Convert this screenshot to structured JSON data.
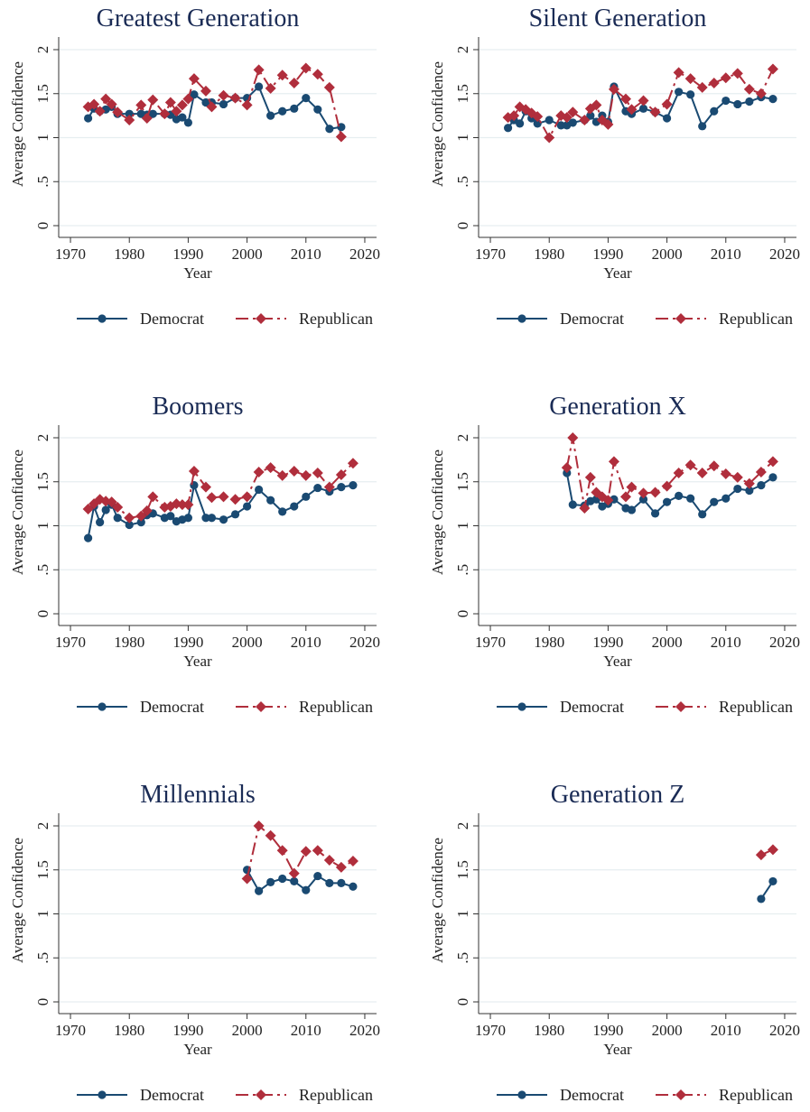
{
  "colors": {
    "democrat": "#1a4a72",
    "republican": "#b02e3c",
    "title": "#1a2b55",
    "grid": "#e6eef0"
  },
  "legend": {
    "democrat": "Democrat",
    "republican": "Republican"
  },
  "chart_data": [
    {
      "type": "line",
      "title": "Greatest Generation",
      "xlabel": "Year",
      "ylabel": "Average Confidence",
      "xlim": [
        1968,
        2022
      ],
      "ylim": [
        0,
        2
      ],
      "xticks": [
        "1970",
        "1980",
        "1990",
        "2000",
        "2010",
        "2020"
      ],
      "yticks": [
        "0",
        ".5",
        "1",
        "1.5",
        "2"
      ],
      "series": [
        {
          "name": "Democrat",
          "x": [
            1973,
            1974,
            1975,
            1976,
            1977,
            1978,
            1980,
            1982,
            1983,
            1984,
            1986,
            1987,
            1988,
            1989,
            1990,
            1991,
            1993,
            1994,
            1996,
            1998,
            2000,
            2002,
            2004,
            2006,
            2008,
            2010,
            2012,
            2014,
            2016
          ],
          "y": [
            1.22,
            1.33,
            1.3,
            1.32,
            1.35,
            1.27,
            1.27,
            1.27,
            1.26,
            1.27,
            1.27,
            1.26,
            1.21,
            1.23,
            1.17,
            1.49,
            1.4,
            1.4,
            1.38,
            1.45,
            1.45,
            1.58,
            1.25,
            1.3,
            1.33,
            1.45,
            1.32,
            1.1,
            1.12
          ]
        },
        {
          "name": "Republican",
          "x": [
            1973,
            1974,
            1975,
            1976,
            1977,
            1978,
            1980,
            1982,
            1983,
            1984,
            1986,
            1987,
            1988,
            1989,
            1990,
            1991,
            1993,
            1994,
            1996,
            1998,
            2000,
            2002,
            2004,
            2006,
            2008,
            2010,
            2012,
            2014,
            2016
          ],
          "y": [
            1.35,
            1.38,
            1.3,
            1.44,
            1.38,
            1.29,
            1.2,
            1.37,
            1.22,
            1.43,
            1.27,
            1.4,
            1.3,
            1.37,
            1.44,
            1.67,
            1.53,
            1.35,
            1.48,
            1.45,
            1.37,
            1.77,
            1.56,
            1.71,
            1.62,
            1.79,
            1.72,
            1.57,
            1.01
          ]
        }
      ]
    },
    {
      "type": "line",
      "title": "Silent Generation",
      "xlabel": "Year",
      "ylabel": "Average Confidence",
      "xlim": [
        1968,
        2022
      ],
      "ylim": [
        0,
        2
      ],
      "xticks": [
        "1970",
        "1980",
        "1990",
        "2000",
        "2010",
        "2020"
      ],
      "yticks": [
        "0",
        ".5",
        "1",
        "1.5",
        "2"
      ],
      "series": [
        {
          "name": "Democrat",
          "x": [
            1973,
            1974,
            1975,
            1976,
            1977,
            1978,
            1980,
            1982,
            1983,
            1984,
            1986,
            1987,
            1988,
            1989,
            1990,
            1991,
            1993,
            1994,
            1996,
            1998,
            2000,
            2002,
            2004,
            2006,
            2008,
            2010,
            2012,
            2014,
            2016,
            2018
          ],
          "y": [
            1.11,
            1.2,
            1.16,
            1.3,
            1.22,
            1.16,
            1.2,
            1.14,
            1.14,
            1.17,
            1.2,
            1.25,
            1.18,
            1.25,
            1.18,
            1.58,
            1.3,
            1.27,
            1.33,
            1.29,
            1.22,
            1.52,
            1.49,
            1.13,
            1.3,
            1.42,
            1.38,
            1.41,
            1.46,
            1.44
          ]
        },
        {
          "name": "Republican",
          "x": [
            1973,
            1974,
            1975,
            1976,
            1977,
            1978,
            1980,
            1982,
            1983,
            1984,
            1986,
            1987,
            1988,
            1989,
            1990,
            1991,
            1993,
            1994,
            1996,
            1998,
            2000,
            2002,
            2004,
            2006,
            2008,
            2010,
            2012,
            2014,
            2016,
            2018
          ],
          "y": [
            1.23,
            1.25,
            1.35,
            1.32,
            1.28,
            1.24,
            1.0,
            1.25,
            1.23,
            1.29,
            1.2,
            1.33,
            1.37,
            1.2,
            1.15,
            1.55,
            1.44,
            1.32,
            1.42,
            1.29,
            1.38,
            1.74,
            1.67,
            1.57,
            1.62,
            1.68,
            1.73,
            1.55,
            1.5,
            1.78
          ]
        }
      ]
    },
    {
      "type": "line",
      "title": "Boomers",
      "xlabel": "Year",
      "ylabel": "Average Confidence",
      "xlim": [
        1968,
        2022
      ],
      "ylim": [
        0,
        2
      ],
      "xticks": [
        "1970",
        "1980",
        "1990",
        "2000",
        "2010",
        "2020"
      ],
      "yticks": [
        "0",
        ".5",
        "1",
        "1.5",
        "2"
      ],
      "series": [
        {
          "name": "Democrat",
          "x": [
            1973,
            1974,
            1975,
            1976,
            1977,
            1978,
            1980,
            1982,
            1983,
            1984,
            1986,
            1987,
            1988,
            1989,
            1990,
            1991,
            1993,
            1994,
            1996,
            1998,
            2000,
            2002,
            2004,
            2006,
            2008,
            2010,
            2012,
            2014,
            2016,
            2018
          ],
          "y": [
            0.86,
            1.22,
            1.04,
            1.18,
            1.24,
            1.09,
            1.01,
            1.04,
            1.12,
            1.14,
            1.09,
            1.11,
            1.05,
            1.07,
            1.09,
            1.46,
            1.09,
            1.09,
            1.07,
            1.13,
            1.22,
            1.41,
            1.29,
            1.16,
            1.22,
            1.33,
            1.43,
            1.39,
            1.44,
            1.46
          ]
        },
        {
          "name": "Republican",
          "x": [
            1973,
            1974,
            1975,
            1976,
            1977,
            1978,
            1980,
            1982,
            1983,
            1984,
            1986,
            1987,
            1988,
            1989,
            1990,
            1991,
            1993,
            1994,
            1996,
            1998,
            2000,
            2002,
            2004,
            2006,
            2008,
            2010,
            2012,
            2014,
            2016,
            2018
          ],
          "y": [
            1.19,
            1.25,
            1.3,
            1.28,
            1.27,
            1.21,
            1.09,
            1.11,
            1.17,
            1.33,
            1.21,
            1.22,
            1.25,
            1.24,
            1.24,
            1.62,
            1.44,
            1.32,
            1.33,
            1.3,
            1.33,
            1.61,
            1.66,
            1.57,
            1.62,
            1.57,
            1.6,
            1.44,
            1.58,
            1.71
          ]
        }
      ]
    },
    {
      "type": "line",
      "title": "Generation X",
      "xlabel": "Year",
      "ylabel": "Average Confidence",
      "xlim": [
        1968,
        2022
      ],
      "ylim": [
        0,
        2
      ],
      "xticks": [
        "1970",
        "1980",
        "1990",
        "2000",
        "2010",
        "2020"
      ],
      "yticks": [
        "0",
        ".5",
        "1",
        "1.5",
        "2"
      ],
      "series": [
        {
          "name": "Democrat",
          "x": [
            1983,
            1984,
            1986,
            1987,
            1988,
            1989,
            1990,
            1991,
            1993,
            1994,
            1996,
            1998,
            2000,
            2002,
            2004,
            2006,
            2008,
            2010,
            2012,
            2014,
            2016,
            2018
          ],
          "y": [
            1.6,
            1.24,
            1.23,
            1.28,
            1.3,
            1.22,
            1.25,
            1.3,
            1.2,
            1.18,
            1.3,
            1.14,
            1.27,
            1.34,
            1.31,
            1.13,
            1.27,
            1.31,
            1.42,
            1.4,
            1.46,
            1.55
          ]
        },
        {
          "name": "Republican",
          "x": [
            1983,
            1984,
            1986,
            1987,
            1988,
            1989,
            1990,
            1991,
            1993,
            1994,
            1996,
            1998,
            2000,
            2002,
            2004,
            2006,
            2008,
            2010,
            2012,
            2014,
            2016,
            2018
          ],
          "y": [
            1.66,
            2.0,
            1.2,
            1.55,
            1.38,
            1.33,
            1.29,
            1.73,
            1.33,
            1.44,
            1.37,
            1.38,
            1.45,
            1.6,
            1.69,
            1.6,
            1.68,
            1.59,
            1.55,
            1.48,
            1.61,
            1.73
          ]
        }
      ]
    },
    {
      "type": "line",
      "title": "Millennials",
      "xlabel": "Year",
      "ylabel": "Average Confidence",
      "xlim": [
        1968,
        2022
      ],
      "ylim": [
        0,
        2
      ],
      "xticks": [
        "1970",
        "1980",
        "1990",
        "2000",
        "2010",
        "2020"
      ],
      "yticks": [
        "0",
        ".5",
        "1",
        "1.5",
        "2"
      ],
      "series": [
        {
          "name": "Democrat",
          "x": [
            2000,
            2002,
            2004,
            2006,
            2008,
            2010,
            2012,
            2014,
            2016,
            2018
          ],
          "y": [
            1.5,
            1.26,
            1.36,
            1.4,
            1.37,
            1.27,
            1.43,
            1.35,
            1.35,
            1.31
          ]
        },
        {
          "name": "Republican",
          "x": [
            2000,
            2002,
            2004,
            2006,
            2008,
            2010,
            2012,
            2014,
            2016,
            2018
          ],
          "y": [
            1.4,
            2.0,
            1.89,
            1.72,
            1.46,
            1.71,
            1.72,
            1.61,
            1.53,
            1.6
          ]
        }
      ]
    },
    {
      "type": "line",
      "title": "Generation Z",
      "xlabel": "Year",
      "ylabel": "Average Confidence",
      "xlim": [
        1968,
        2022
      ],
      "ylim": [
        0,
        2
      ],
      "xticks": [
        "1970",
        "1980",
        "1990",
        "2000",
        "2010",
        "2020"
      ],
      "yticks": [
        "0",
        ".5",
        "1",
        "1.5",
        "2"
      ],
      "series": [
        {
          "name": "Democrat",
          "x": [
            2016,
            2018
          ],
          "y": [
            1.17,
            1.37
          ]
        },
        {
          "name": "Republican",
          "x": [
            2016,
            2018
          ],
          "y": [
            1.67,
            1.73
          ]
        }
      ]
    }
  ]
}
